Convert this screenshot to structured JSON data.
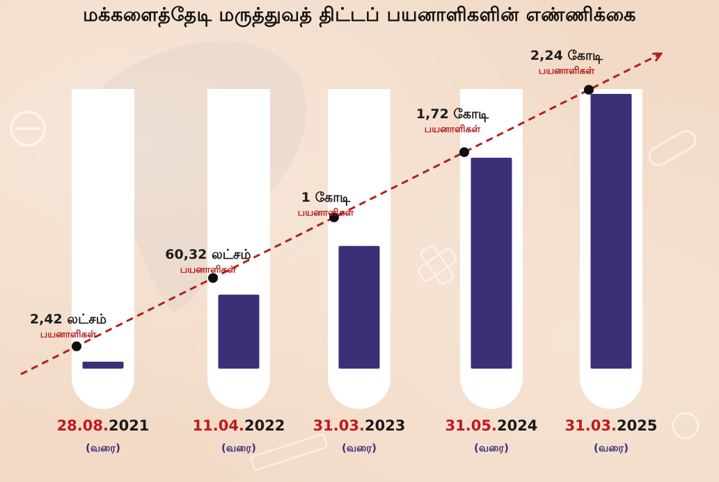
{
  "title": "மக்களைத்தேடி மருத்துவத் திட்டப் பயனாளிகளின் எண்ணிக்கை",
  "colors": {
    "bar": "#3b2f78",
    "bar_top": "#4a3d8e",
    "tube": "#ffffff",
    "trend": "#b51d1d",
    "marker": "#0d0d0d",
    "value_text": "#1b1b1b",
    "sub_label": "#b3191c",
    "date_red": "#c0191d",
    "until_text": "#3c2f7a"
  },
  "chart_data": {
    "type": "bar",
    "title": "மக்களைத்தேடி மருத்துவத் திட்டப் பயனாளிகளின் எண்ணிக்கை",
    "unit": "beneficiaries (lakh)",
    "categories": [
      "28.08.2021",
      "11.04.2022",
      "31.03.2023",
      "31.05.2024",
      "31.03.2025"
    ],
    "values": [
      2.42,
      60.32,
      100,
      172,
      224
    ],
    "ylim": [
      0,
      240
    ],
    "grid": false,
    "legend": "none",
    "trend_line": "dashed-arrow",
    "date_labels": [
      {
        "red": "28.08.",
        "black": "2021",
        "until": "(வரை)"
      },
      {
        "red": "11.04.",
        "black": "2022",
        "until": "(வரை)"
      },
      {
        "red": "31.03.",
        "black": "2023",
        "until": "(வரை)"
      },
      {
        "red": "31.05.",
        "black": "2024",
        "until": "(வரை)"
      },
      {
        "red": "31.03.",
        "black": "2025",
        "until": "(வரை)"
      }
    ],
    "data_labels": [
      {
        "value": "2,42 லட்சம்",
        "sub": "பயனாளிகள்"
      },
      {
        "value": "60,32 லட்சம்",
        "sub": "பயனாளிகள்"
      },
      {
        "value": "1 கோடி",
        "sub": "பயனாளிகள்"
      },
      {
        "value": "1,72 கோடி",
        "sub": "பயனாளிகள்"
      },
      {
        "value": "2,24 கோடி",
        "sub": "பயனாளிகள்"
      }
    ]
  }
}
